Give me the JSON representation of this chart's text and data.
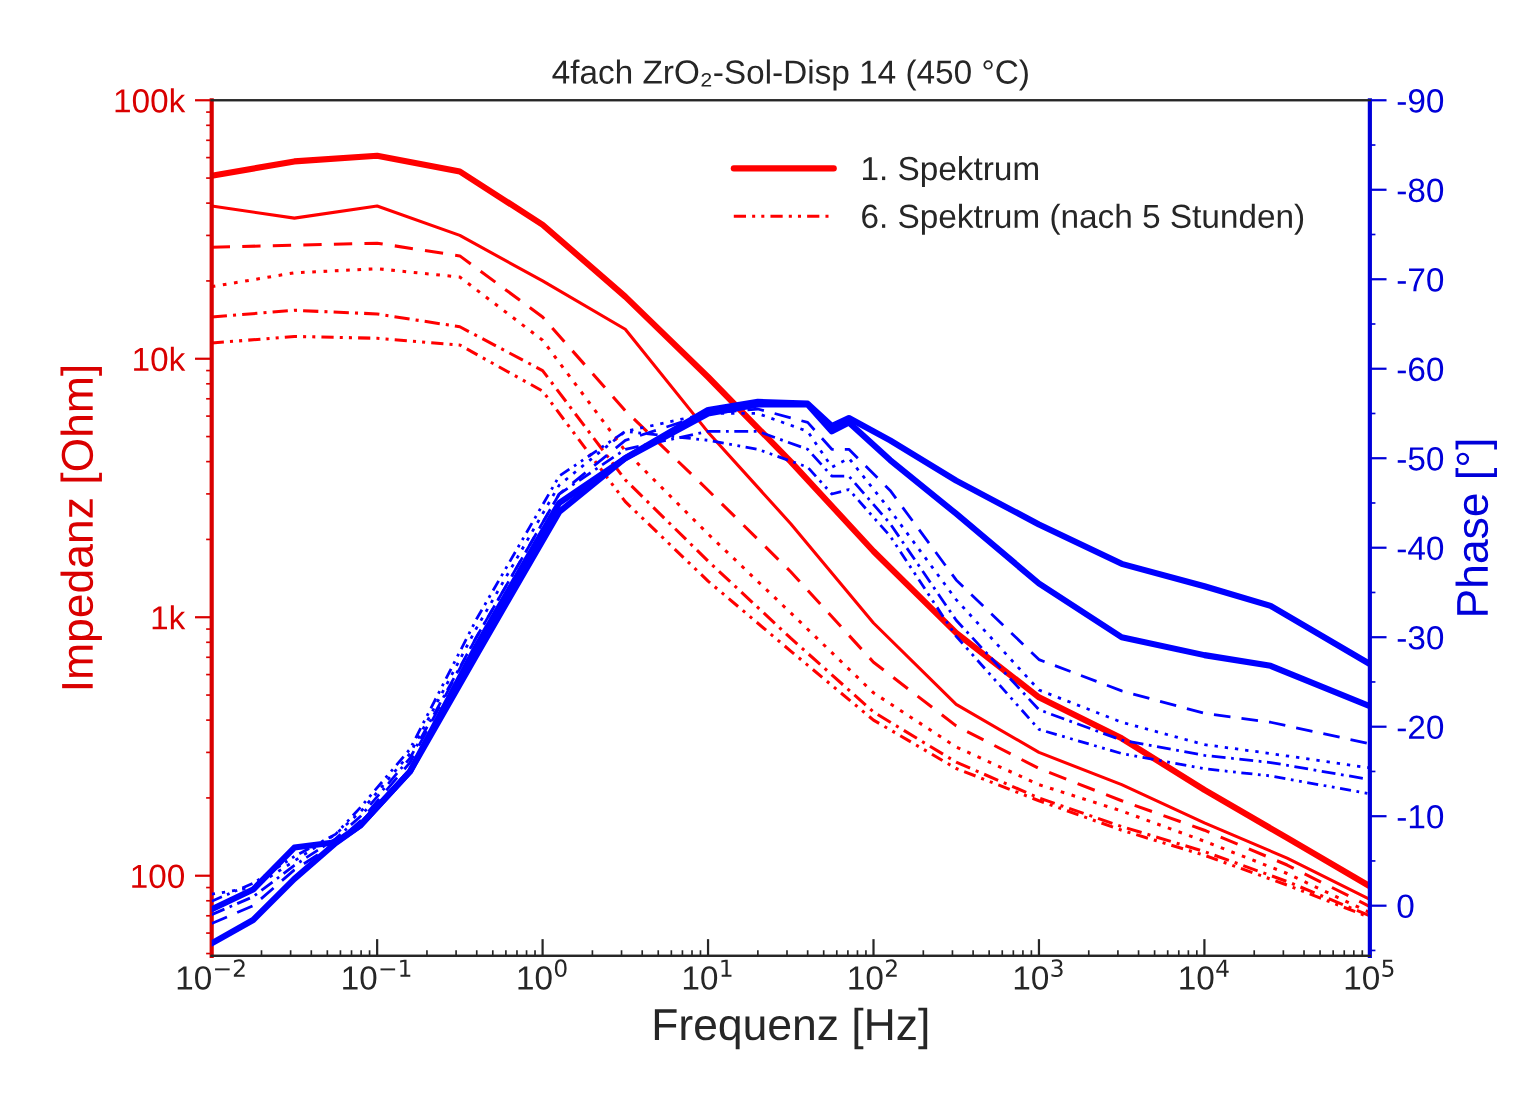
{
  "chart_data": {
    "type": "line",
    "title": "4fach ZrO₂-Sol-Disp 14 (450 °C)",
    "xlabel": "Frequenz [Hz]",
    "ylabel": "Impedanz [Ohm]",
    "y2label": "Phase [°]",
    "log": "xy",
    "legend": "top right",
    "xlim": [
      0.01,
      100000
    ],
    "xticks": [
      {
        "value": 0.01,
        "label": "10$^{−2}$"
      },
      {
        "value": 0.1,
        "label": "10$^{−1}$"
      },
      {
        "value": 1,
        "label": "10$^{0}$"
      },
      {
        "value": 10,
        "label": "10$^{1}$"
      },
      {
        "value": 100,
        "label": "10$^{2}$"
      },
      {
        "value": 1000,
        "label": "10$^{3}$"
      },
      {
        "value": 10000,
        "label": "10$^{4}$"
      },
      {
        "value": 100000,
        "label": "10$^{5}$"
      }
    ],
    "ylim": [
      49,
      100000
    ],
    "yticks": [
      100,
      {
        "value": 1000,
        "label": "1k"
      },
      {
        "value": 10000,
        "label": "10k"
      },
      {
        "value": 100000,
        "label": "100k"
      }
    ],
    "y2lim": [
      5.6,
      -90
    ],
    "y2ticks": [
      0,
      -10,
      -20,
      -30,
      -40,
      -50,
      -60,
      -70,
      -80,
      -90
    ],
    "series": [
      {
        "name": "1. Spektrum",
        "color": "#ff0000",
        "line_style": "solid",
        "x": [
          0.01,
          0.0316,
          0.1,
          0.316,
          1,
          3.16,
          10,
          31.6,
          100,
          316,
          1000,
          3162,
          10000,
          31623,
          100000
        ],
        "values": [
          51000,
          58000,
          61000,
          53000,
          33000,
          17400,
          8500,
          4000,
          1800,
          870,
          490,
          340,
          215,
          140,
          91
        ]
      },
      {
        "color": "#ff0000",
        "line_style": "solid",
        "x": [
          0.01,
          0.0316,
          0.1,
          0.316,
          1,
          3.16,
          10,
          31.6,
          100,
          316,
          1000,
          3162,
          10000,
          31623,
          100000
        ],
        "values": [
          39000,
          35000,
          39000,
          30000,
          20000,
          13000,
          5200,
          2300,
          950,
          460,
          300,
          225,
          160,
          117,
          81
        ]
      },
      {
        "color": "#ff0000",
        "line_style": "dashed",
        "x": [
          0.01,
          0.0316,
          0.1,
          0.316,
          1,
          3.16,
          10,
          31.6,
          100,
          316,
          1000,
          3162,
          10000,
          31623,
          100000
        ],
        "values": [
          27000,
          27500,
          28000,
          25000,
          14500,
          6300,
          3100,
          1500,
          670,
          380,
          260,
          195,
          150,
          110,
          76
        ]
      },
      {
        "color": "#ff0000",
        "line_style": "dotted",
        "x": [
          0.01,
          0.0316,
          0.1,
          0.316,
          1,
          3.16,
          10,
          31.6,
          100,
          316,
          1000,
          3162,
          10000,
          31623,
          100000
        ],
        "values": [
          19000,
          21500,
          22300,
          20700,
          11800,
          4400,
          2100,
          1040,
          510,
          315,
          225,
          178,
          136,
          102,
          72
        ]
      },
      {
        "color": "#ff0000",
        "line_style": "dashdot",
        "x": [
          0.01,
          0.0316,
          0.1,
          0.316,
          1,
          3.16,
          10,
          31.6,
          100,
          316,
          1000,
          3162,
          10000,
          31623,
          100000
        ],
        "values": [
          14500,
          15400,
          14900,
          13300,
          9000,
          3400,
          1650,
          830,
          430,
          275,
          200,
          155,
          124,
          95,
          70
        ]
      },
      {
        "name": "6. Spektrum (nach 5 Stunden)",
        "color": "#ff0000",
        "line_style": "dashdotdot",
        "x": [
          0.01,
          0.0316,
          0.1,
          0.316,
          1,
          3.16,
          10,
          31.6,
          100,
          316,
          1000,
          3162,
          10000,
          31623,
          100000
        ],
        "values": [
          11500,
          12200,
          12000,
          11300,
          7500,
          2800,
          1380,
          740,
          400,
          260,
          195,
          150,
          120,
          92,
          69
        ]
      },
      {
        "color": "#0000ff",
        "axis": "y2",
        "line_style": "solid",
        "x": [
          0.01,
          0.0178,
          0.0316,
          0.0562,
          0.0794,
          0.158,
          0.398,
          1.26,
          3.16,
          10,
          20,
          40,
          56,
          71,
          126,
          316,
          1000,
          3162,
          10000,
          25119,
          100000
        ],
        "values": [
          0.4,
          -1.8,
          -6.5,
          -7.1,
          -9,
          -15,
          -29,
          -45,
          -50,
          -55.4,
          -56.3,
          -56.1,
          -53.6,
          -54.5,
          -52,
          -47.5,
          -42.6,
          -38.2,
          -35.7,
          -33.5,
          -27
        ]
      },
      {
        "color": "#0000ff",
        "axis": "y2",
        "line_style": "solid",
        "x": [
          0.01,
          0.0178,
          0.0316,
          0.0562,
          0.0794,
          0.158,
          0.398,
          1.26,
          3.16,
          10,
          20,
          40,
          56,
          71,
          126,
          316,
          1000,
          3162,
          10000,
          25119,
          100000
        ],
        "values": [
          4.2,
          1.6,
          -3,
          -7,
          -9,
          -15,
          -28,
          -44,
          -50,
          -55,
          -56,
          -56,
          -53,
          -54,
          -49.8,
          -43.8,
          -36,
          -30,
          -28,
          -26.8,
          -22.3
        ]
      },
      {
        "color": "#0000ff",
        "axis": "y2",
        "line_style": "dashed",
        "x": [
          0.01,
          0.0178,
          0.0316,
          0.0562,
          0.0794,
          0.158,
          0.398,
          1.26,
          3.16,
          10,
          20,
          40,
          56,
          71,
          126,
          316,
          1000,
          3162,
          10000,
          25119,
          100000
        ],
        "values": [
          2,
          0,
          -4,
          -7,
          -9.5,
          -16,
          -30,
          -46,
          -52,
          -55,
          -55.5,
          -54,
          -51,
          -51,
          -46.4,
          -36.4,
          -27.5,
          -24,
          -21.5,
          -20.5,
          -18.1
        ]
      },
      {
        "color": "#0000ff",
        "axis": "y2",
        "line_style": "dotted",
        "x": [
          0.01,
          0.0178,
          0.0316,
          0.0562,
          0.0794,
          0.158,
          0.398,
          1.26,
          3.16,
          10,
          20,
          40,
          56,
          71,
          126,
          316,
          1000,
          3162,
          10000,
          25119,
          100000
        ],
        "values": [
          -1.3,
          -2,
          -5,
          -8,
          -10.5,
          -17,
          -31,
          -47,
          -53,
          -55,
          -55,
          -53,
          -49,
          -50,
          -44.2,
          -34.2,
          -24.1,
          -20.5,
          -18,
          -17,
          -15.4
        ]
      },
      {
        "color": "#0000ff",
        "axis": "y2",
        "line_style": "dashdot",
        "x": [
          0.01,
          0.0178,
          0.0316,
          0.0562,
          0.0794,
          0.158,
          0.398,
          1.26,
          3.16,
          10,
          20,
          40,
          56,
          71,
          126,
          316,
          1000,
          3162,
          10000,
          25119,
          100000
        ],
        "values": [
          1,
          -1,
          -4.5,
          -7.5,
          -10,
          -16.5,
          -30,
          -46,
          -51,
          -53,
          -53,
          -51,
          -48,
          -48,
          -42.7,
          -31.9,
          -21.9,
          -18.5,
          -16.8,
          -16,
          -14.1
        ]
      },
      {
        "color": "#0000ff",
        "axis": "y2",
        "line_style": "dashdotdot",
        "x": [
          0.01,
          0.0178,
          0.0316,
          0.0562,
          0.0794,
          0.158,
          0.398,
          1.26,
          3.16,
          10,
          20,
          40,
          56,
          71,
          126,
          316,
          1000,
          3162,
          10000,
          25119,
          100000
        ],
        "values": [
          -0.5,
          -2.5,
          -5.5,
          -8,
          -11,
          -17.5,
          -32,
          -48,
          -53,
          -52,
          -51,
          -49,
          -46,
          -46.5,
          -41.3,
          -30.1,
          -19.7,
          -17,
          -15.3,
          -14.5,
          -12.5
        ]
      }
    ]
  }
}
